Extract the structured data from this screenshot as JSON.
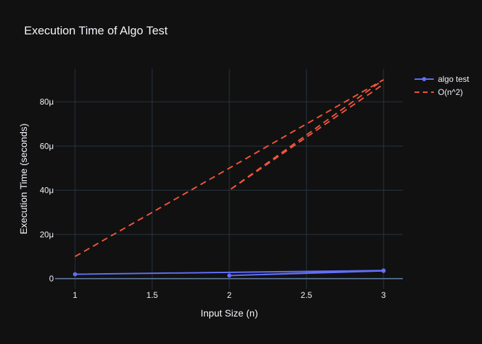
{
  "chart_data": {
    "type": "line",
    "title": "Execution Time of Algo Test",
    "xlabel": "Input Size (n)",
    "ylabel": "Execution Time (seconds)",
    "xlim": [
      1,
      3
    ],
    "ylim": [
      0,
      9e-05
    ],
    "x_ticks": [
      1,
      1.5,
      2,
      2.5,
      3
    ],
    "x_tick_labels": [
      "1",
      "1.5",
      "2",
      "2.5",
      "3"
    ],
    "y_ticks": [
      0,
      2e-05,
      4e-05,
      6e-05,
      8e-05
    ],
    "y_tick_labels": [
      "0",
      "20μ",
      "40μ",
      "60μ",
      "80μ"
    ],
    "grid": true,
    "legend_position": "top-right",
    "series": [
      {
        "name": "algo test",
        "mode": "lines+markers",
        "color": "#636efa",
        "dash": "solid",
        "x": [
          1,
          3,
          2,
          3
        ],
        "y": [
          2e-06,
          3.7e-06,
          1.4e-06,
          3.5e-06
        ]
      },
      {
        "name": "O(n^2)",
        "mode": "lines",
        "color": "#ef553b",
        "dash": "dash",
        "x": [
          1,
          2,
          3,
          2,
          3
        ],
        "y": [
          1e-05,
          5e-05,
          9e-05,
          4e-05,
          8.8e-05
        ]
      }
    ],
    "colors": {
      "background": "#111111",
      "grid": "#283442",
      "text": "#f2f5fa",
      "zeroline": "#506784"
    }
  }
}
